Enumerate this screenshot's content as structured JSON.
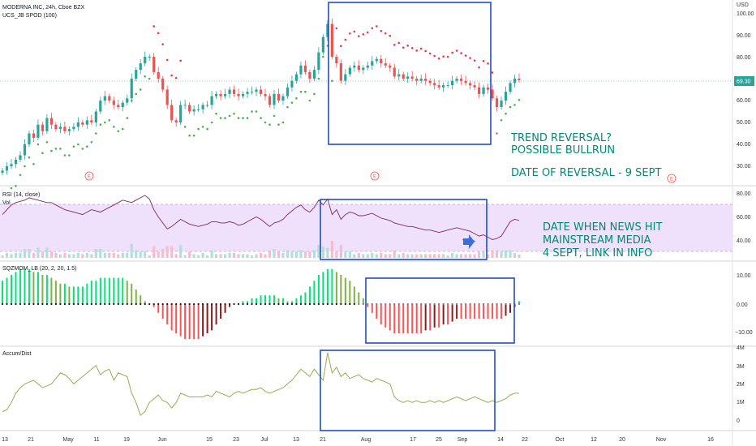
{
  "header": {
    "title": "MODERNA INC, 24h, Cboe BZX",
    "currency": "USD"
  },
  "price_pane": {
    "indicator_label": "UCS_JB SPOD (100)",
    "last_price": "69.30",
    "axis_ticks": [
      "100.00",
      "90.00",
      "80.00",
      "70.00",
      "60.00",
      "50.00",
      "40.00",
      "30.00"
    ],
    "earnings_marker": "E",
    "colors": {
      "up": "#26a69a",
      "down": "#ef5350",
      "dots_up": "#4caf50",
      "dots_down": "#f23645",
      "box": "#1f4ec6",
      "last_price_bg": "#26a69a"
    }
  },
  "annotations": {
    "trend_lines": [
      "TREND REVERSAL?",
      "POSSIBLE BULLRUN",
      "",
      "DATE  OF REVERSAL - 9 SEPT"
    ],
    "news_lines": [
      "DATE WHEN NEWS HIT",
      "MAINSTREAM MEDIA",
      "4 SEPT, LINK IN INFO"
    ]
  },
  "rsi_pane": {
    "label": "RSI (14, close)",
    "vol_label": "Vol",
    "axis_ticks": [
      "80.00",
      "60.00",
      "40.00"
    ],
    "colors": {
      "line": "#7e2a5a",
      "band": "#e9d5fb",
      "vol_up": "#b2dfdb",
      "vol_down": "#f8bbd0"
    }
  },
  "sqz_pane": {
    "label": "SQZMOM_LB (20, 2, 20, 1.5)",
    "axis_ticks": [
      "10.00",
      "0.00",
      "−10.00"
    ]
  },
  "ad_pane": {
    "label": "Accum/Dist",
    "axis_ticks": [
      "4M",
      "3M",
      "2M",
      "1M",
      "0"
    ],
    "colors": {
      "line": "#a0a850"
    }
  },
  "x_axis": {
    "ticks": [
      "13",
      "21",
      "May",
      "11",
      "19",
      "Jun",
      "15",
      "23",
      "Jul",
      "13",
      "21",
      "Aug",
      "17",
      "25",
      "Sep",
      "14",
      "22",
      "Oct",
      "12",
      "20",
      "Nov",
      "16"
    ]
  },
  "chart_data": [
    {
      "type": "candlestick",
      "title": "MODERNA INC, 24h, Cboe BZX",
      "unit": "USD",
      "ylim": [
        22,
        102
      ],
      "approx_close": [
        28,
        30,
        31,
        33,
        35,
        40,
        45,
        43,
        49,
        46,
        52,
        49,
        47,
        48,
        46,
        47,
        48,
        50,
        49,
        51,
        50,
        55,
        60,
        62,
        60,
        58,
        57,
        59,
        61,
        70,
        74,
        77,
        80,
        80,
        73,
        70,
        65,
        58,
        51,
        50,
        58,
        58,
        55,
        56,
        56,
        58,
        58,
        62,
        63,
        62,
        63,
        65,
        63,
        62,
        63,
        64,
        64,
        65,
        63,
        62,
        58,
        63,
        60,
        62,
        66,
        69,
        72,
        76,
        73,
        70,
        74,
        82,
        89,
        95,
        80,
        77,
        69,
        72,
        75,
        76,
        74,
        75,
        76,
        78,
        79,
        77,
        76,
        75,
        71,
        72,
        70,
        71,
        70,
        69,
        70,
        69,
        68,
        67,
        66,
        67,
        67,
        69,
        70,
        69,
        68,
        67,
        66,
        63,
        66,
        65,
        61,
        57,
        60,
        64,
        68,
        70,
        69.3
      ]
    },
    {
      "type": "line",
      "title": "RSI (14, close)",
      "ylim": [
        30,
        80
      ],
      "approx_values": [
        62,
        66,
        70,
        72,
        73,
        74,
        76,
        75,
        74,
        73,
        72,
        72,
        70,
        68,
        66,
        65,
        64,
        63,
        62,
        64,
        66,
        65,
        64,
        66,
        68,
        70,
        72,
        74,
        73,
        72,
        74,
        76,
        78,
        75,
        66,
        60,
        55,
        50,
        52,
        55,
        58,
        56,
        54,
        53,
        52,
        53,
        54,
        56,
        56,
        55,
        55,
        56,
        55,
        53,
        54,
        56,
        58,
        60,
        58,
        55,
        52,
        55,
        56,
        58,
        62,
        65,
        68,
        70,
        66,
        64,
        68,
        74,
        70,
        75,
        62,
        66,
        58,
        62,
        64,
        63,
        61,
        61,
        62,
        63,
        61,
        59,
        58,
        57,
        55,
        54,
        53,
        52,
        52,
        51,
        50,
        49,
        49,
        48,
        47,
        48,
        49,
        50,
        51,
        50,
        49,
        48,
        46,
        44,
        45,
        43,
        41,
        42,
        44,
        50,
        56,
        58,
        57
      ]
    },
    {
      "type": "bar",
      "title": "SQZMOM_LB (20, 2, 20, 1.5)",
      "ylim": [
        -12,
        12
      ],
      "approx_values": [
        8,
        9,
        10,
        11,
        12,
        12,
        12,
        11,
        11,
        10,
        10,
        9,
        8,
        7,
        7,
        6,
        6,
        6,
        6,
        7,
        8,
        8,
        9,
        9,
        9,
        9,
        9,
        9,
        8,
        7,
        5,
        3,
        1,
        0,
        -1,
        -3,
        -5,
        -7,
        -9,
        -10,
        -11,
        -12,
        -12,
        -12,
        -12,
        -11,
        -10,
        -9,
        -7,
        -5,
        -3,
        -1,
        0,
        0,
        1,
        1,
        2,
        2,
        3,
        3,
        3,
        3,
        2,
        2,
        1,
        1,
        2,
        3,
        4,
        6,
        8,
        10,
        11,
        12,
        12,
        11,
        10,
        9,
        8,
        6,
        4,
        2,
        -1,
        -3,
        -5,
        -7,
        -8,
        -9,
        -10,
        -10,
        -10,
        -10,
        -10,
        -10,
        -10,
        -9,
        -9,
        -8,
        -8,
        -7,
        -7,
        -6,
        -5,
        -5,
        -5,
        -5,
        -5,
        -5,
        -5,
        -5,
        -5,
        -5,
        -5,
        -4,
        -3,
        -1,
        1
      ]
    },
    {
      "type": "line",
      "title": "Accum/Dist",
      "ylim": [
        -0.5,
        4.2
      ],
      "approx_values": [
        0.5,
        0.6,
        1,
        1.5,
        1.8,
        2.0,
        2.1,
        2.2,
        2.0,
        1.8,
        1.9,
        2.0,
        2.3,
        2.6,
        2.5,
        2.3,
        2.0,
        2.2,
        2.4,
        2.6,
        2.8,
        3.0,
        2.5,
        2.7,
        2.8,
        2.2,
        2.6,
        2.5,
        2.4,
        1.5,
        1.0,
        0.3,
        0.5,
        1.0,
        1.2,
        1.4,
        1.1,
        1.0,
        0.7,
        1.0,
        1.5,
        1.4,
        1.3,
        1.3,
        1.3,
        1.3,
        1.4,
        1.3,
        1.6,
        1.5,
        1.4,
        1.3,
        1.5,
        1.6,
        1.5,
        1.6,
        1.7,
        1.7,
        1.8,
        1.6,
        1.5,
        1.6,
        1.7,
        1.8,
        2.0,
        2.2,
        2.5,
        2.8,
        2.6,
        2.4,
        2.8,
        2.5,
        2.2,
        3.7,
        2.6,
        2.9,
        2.4,
        2.6,
        2.3,
        2.4,
        2.5,
        2.3,
        2.2,
        2.1,
        2.3,
        2.2,
        2.1,
        2.0,
        1.3,
        1.1,
        1.0,
        1.1,
        1.0,
        1.1,
        1.0,
        1.0,
        1.1,
        1.0,
        1.1,
        1.0,
        1.1,
        1.2,
        1.3,
        1.2,
        1.1,
        1.2,
        1.3,
        1.2,
        1.1,
        1.0,
        1.1,
        1.0,
        1.1,
        1.2,
        1.4,
        1.5,
        1.5
      ]
    }
  ]
}
